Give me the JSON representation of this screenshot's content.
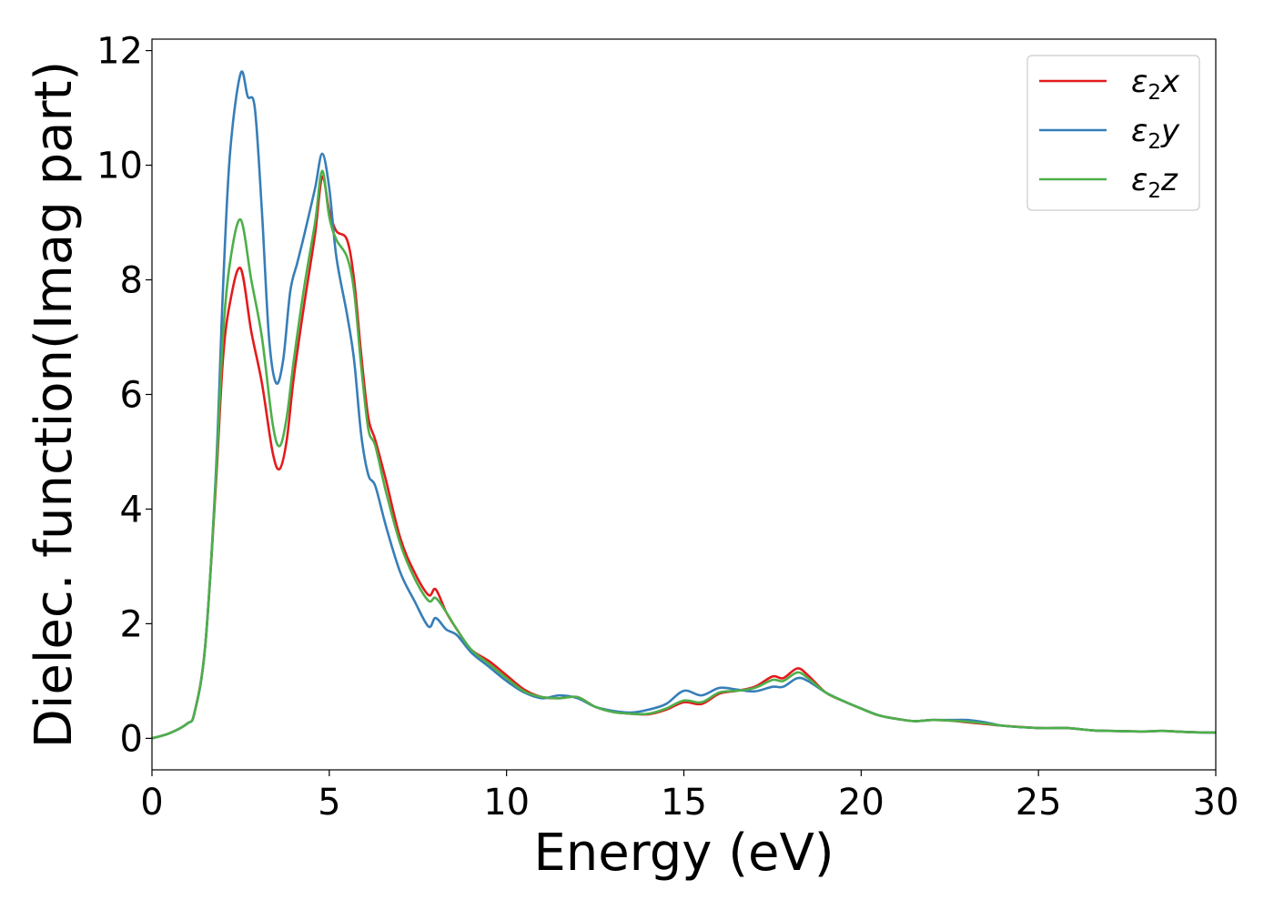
{
  "chart_data": {
    "type": "line",
    "title": "",
    "xlabel": "Energy (eV)",
    "ylabel": "Dielec. function(Imag part)",
    "xlim": [
      0,
      30
    ],
    "ylim": [
      -0.55,
      12.2
    ],
    "xticks": [
      0,
      5,
      10,
      15,
      20,
      25,
      30
    ],
    "yticks": [
      0,
      2,
      4,
      6,
      8,
      10,
      12
    ],
    "grid": false,
    "legend_position": "top-right",
    "series": [
      {
        "name": "ε₂x",
        "legend_base": "ε",
        "legend_sub": "2",
        "legend_var": "x",
        "color": "#e41a1c",
        "points": [
          [
            0,
            0
          ],
          [
            0.5,
            0.09
          ],
          [
            1.0,
            0.26
          ],
          [
            1.2,
            0.45
          ],
          [
            1.5,
            1.6
          ],
          [
            1.8,
            4.4
          ],
          [
            2.0,
            6.6
          ],
          [
            2.2,
            7.6
          ],
          [
            2.5,
            8.2
          ],
          [
            2.8,
            7.1
          ],
          [
            3.1,
            6.2
          ],
          [
            3.4,
            5.0
          ],
          [
            3.6,
            4.7
          ],
          [
            3.8,
            5.2
          ],
          [
            4.0,
            6.3
          ],
          [
            4.3,
            7.6
          ],
          [
            4.6,
            8.8
          ],
          [
            4.8,
            9.8
          ],
          [
            5.0,
            9.2
          ],
          [
            5.2,
            8.85
          ],
          [
            5.5,
            8.7
          ],
          [
            5.7,
            8.0
          ],
          [
            5.9,
            6.7
          ],
          [
            6.1,
            5.6
          ],
          [
            6.3,
            5.2
          ],
          [
            6.6,
            4.5
          ],
          [
            7.0,
            3.5
          ],
          [
            7.4,
            2.9
          ],
          [
            7.8,
            2.5
          ],
          [
            8.0,
            2.6
          ],
          [
            8.3,
            2.2
          ],
          [
            8.6,
            1.9
          ],
          [
            9.0,
            1.55
          ],
          [
            9.5,
            1.35
          ],
          [
            10.0,
            1.1
          ],
          [
            10.5,
            0.85
          ],
          [
            11.0,
            0.72
          ],
          [
            11.5,
            0.7
          ],
          [
            12.0,
            0.72
          ],
          [
            12.5,
            0.55
          ],
          [
            13.0,
            0.46
          ],
          [
            13.5,
            0.43
          ],
          [
            14.0,
            0.42
          ],
          [
            14.5,
            0.5
          ],
          [
            15.0,
            0.63
          ],
          [
            15.5,
            0.6
          ],
          [
            16.0,
            0.78
          ],
          [
            16.5,
            0.83
          ],
          [
            17.0,
            0.9
          ],
          [
            17.5,
            1.08
          ],
          [
            17.8,
            1.05
          ],
          [
            18.2,
            1.22
          ],
          [
            18.5,
            1.1
          ],
          [
            19.0,
            0.8
          ],
          [
            19.5,
            0.65
          ],
          [
            20.0,
            0.52
          ],
          [
            20.5,
            0.4
          ],
          [
            21.0,
            0.34
          ],
          [
            21.5,
            0.3
          ],
          [
            22.0,
            0.32
          ],
          [
            22.5,
            0.31
          ],
          [
            23.0,
            0.28
          ],
          [
            23.5,
            0.25
          ],
          [
            24.0,
            0.22
          ],
          [
            25.0,
            0.18
          ],
          [
            25.8,
            0.18
          ],
          [
            26.5,
            0.14
          ],
          [
            27.0,
            0.13
          ],
          [
            28.0,
            0.12
          ],
          [
            28.5,
            0.13
          ],
          [
            29.2,
            0.11
          ],
          [
            30.0,
            0.1
          ]
        ]
      },
      {
        "name": "ε₂y",
        "legend_base": "ε",
        "legend_sub": "2",
        "legend_var": "y",
        "color": "#377eb8",
        "points": [
          [
            0,
            0
          ],
          [
            0.5,
            0.09
          ],
          [
            1.0,
            0.26
          ],
          [
            1.2,
            0.45
          ],
          [
            1.5,
            1.6
          ],
          [
            1.8,
            4.6
          ],
          [
            2.0,
            7.8
          ],
          [
            2.2,
            10.2
          ],
          [
            2.5,
            11.6
          ],
          [
            2.7,
            11.2
          ],
          [
            2.9,
            11.0
          ],
          [
            3.1,
            9.2
          ],
          [
            3.3,
            7.0
          ],
          [
            3.5,
            6.2
          ],
          [
            3.7,
            6.6
          ],
          [
            3.9,
            7.8
          ],
          [
            4.1,
            8.3
          ],
          [
            4.3,
            8.8
          ],
          [
            4.6,
            9.6
          ],
          [
            4.8,
            10.2
          ],
          [
            5.0,
            9.6
          ],
          [
            5.2,
            8.4
          ],
          [
            5.5,
            7.4
          ],
          [
            5.7,
            6.6
          ],
          [
            5.9,
            5.3
          ],
          [
            6.1,
            4.6
          ],
          [
            6.3,
            4.4
          ],
          [
            6.6,
            3.7
          ],
          [
            7.0,
            2.9
          ],
          [
            7.4,
            2.4
          ],
          [
            7.8,
            1.95
          ],
          [
            8.0,
            2.1
          ],
          [
            8.3,
            1.9
          ],
          [
            8.6,
            1.8
          ],
          [
            9.0,
            1.5
          ],
          [
            9.5,
            1.25
          ],
          [
            10.0,
            1.0
          ],
          [
            10.5,
            0.8
          ],
          [
            11.0,
            0.7
          ],
          [
            11.5,
            0.75
          ],
          [
            12.0,
            0.7
          ],
          [
            12.5,
            0.55
          ],
          [
            13.0,
            0.48
          ],
          [
            13.5,
            0.45
          ],
          [
            14.0,
            0.5
          ],
          [
            14.5,
            0.6
          ],
          [
            15.0,
            0.83
          ],
          [
            15.5,
            0.75
          ],
          [
            16.0,
            0.88
          ],
          [
            16.5,
            0.85
          ],
          [
            17.0,
            0.82
          ],
          [
            17.5,
            0.9
          ],
          [
            17.8,
            0.9
          ],
          [
            18.2,
            1.05
          ],
          [
            18.5,
            1.0
          ],
          [
            19.0,
            0.8
          ],
          [
            19.5,
            0.65
          ],
          [
            20.0,
            0.52
          ],
          [
            20.5,
            0.4
          ],
          [
            21.0,
            0.34
          ],
          [
            21.5,
            0.3
          ],
          [
            22.0,
            0.32
          ],
          [
            22.5,
            0.32
          ],
          [
            23.0,
            0.32
          ],
          [
            23.5,
            0.28
          ],
          [
            24.0,
            0.22
          ],
          [
            25.0,
            0.18
          ],
          [
            25.8,
            0.18
          ],
          [
            26.5,
            0.14
          ],
          [
            27.0,
            0.13
          ],
          [
            28.0,
            0.12
          ],
          [
            28.5,
            0.13
          ],
          [
            29.2,
            0.11
          ],
          [
            30.0,
            0.1
          ]
        ]
      },
      {
        "name": "ε₂z",
        "legend_base": "ε",
        "legend_sub": "2",
        "legend_var": "z",
        "color": "#4daf4a",
        "points": [
          [
            0,
            0
          ],
          [
            0.5,
            0.09
          ],
          [
            1.0,
            0.26
          ],
          [
            1.2,
            0.45
          ],
          [
            1.5,
            1.6
          ],
          [
            1.8,
            4.5
          ],
          [
            2.0,
            7.0
          ],
          [
            2.2,
            8.3
          ],
          [
            2.5,
            9.05
          ],
          [
            2.8,
            8.0
          ],
          [
            3.1,
            7.0
          ],
          [
            3.4,
            5.5
          ],
          [
            3.6,
            5.1
          ],
          [
            3.8,
            5.6
          ],
          [
            4.0,
            6.6
          ],
          [
            4.3,
            7.9
          ],
          [
            4.6,
            9.0
          ],
          [
            4.8,
            9.9
          ],
          [
            5.0,
            9.1
          ],
          [
            5.2,
            8.7
          ],
          [
            5.5,
            8.4
          ],
          [
            5.7,
            7.8
          ],
          [
            5.9,
            6.5
          ],
          [
            6.1,
            5.4
          ],
          [
            6.3,
            5.1
          ],
          [
            6.6,
            4.3
          ],
          [
            7.0,
            3.4
          ],
          [
            7.4,
            2.8
          ],
          [
            7.8,
            2.4
          ],
          [
            8.0,
            2.45
          ],
          [
            8.3,
            2.2
          ],
          [
            8.6,
            1.9
          ],
          [
            9.0,
            1.55
          ],
          [
            9.5,
            1.3
          ],
          [
            10.0,
            1.05
          ],
          [
            10.5,
            0.82
          ],
          [
            11.0,
            0.72
          ],
          [
            11.5,
            0.7
          ],
          [
            12.0,
            0.72
          ],
          [
            12.5,
            0.55
          ],
          [
            13.0,
            0.46
          ],
          [
            13.5,
            0.43
          ],
          [
            14.0,
            0.43
          ],
          [
            14.5,
            0.52
          ],
          [
            15.0,
            0.66
          ],
          [
            15.5,
            0.63
          ],
          [
            16.0,
            0.8
          ],
          [
            16.5,
            0.83
          ],
          [
            17.0,
            0.88
          ],
          [
            17.5,
            1.02
          ],
          [
            17.8,
            1.0
          ],
          [
            18.2,
            1.15
          ],
          [
            18.5,
            1.05
          ],
          [
            19.0,
            0.8
          ],
          [
            19.5,
            0.65
          ],
          [
            20.0,
            0.52
          ],
          [
            20.5,
            0.4
          ],
          [
            21.0,
            0.34
          ],
          [
            21.5,
            0.3
          ],
          [
            22.0,
            0.32
          ],
          [
            22.5,
            0.31
          ],
          [
            23.0,
            0.29
          ],
          [
            23.5,
            0.26
          ],
          [
            24.0,
            0.22
          ],
          [
            25.0,
            0.18
          ],
          [
            25.8,
            0.18
          ],
          [
            26.5,
            0.14
          ],
          [
            27.0,
            0.13
          ],
          [
            28.0,
            0.12
          ],
          [
            28.5,
            0.13
          ],
          [
            29.2,
            0.11
          ],
          [
            30.0,
            0.1
          ]
        ]
      }
    ]
  }
}
